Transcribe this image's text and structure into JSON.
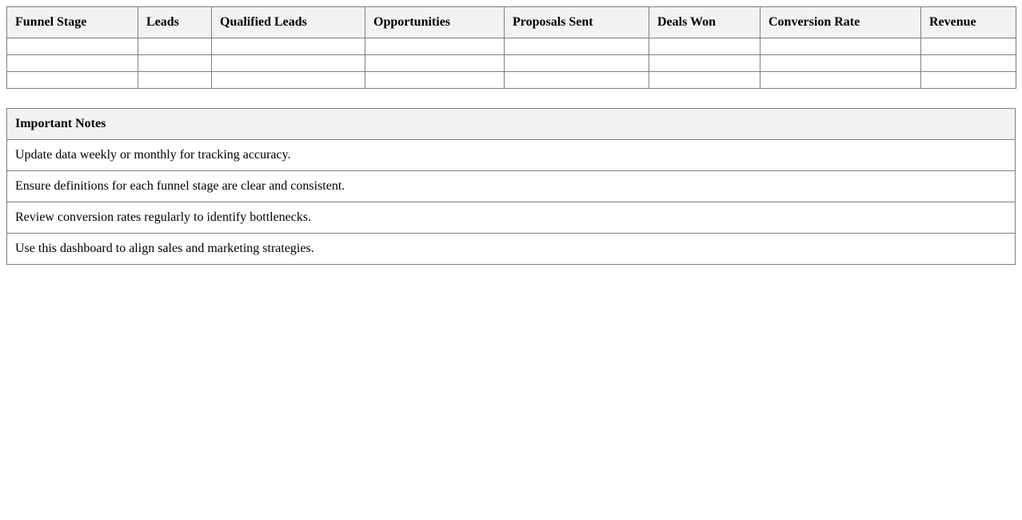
{
  "funnel_table": {
    "headers": [
      "Funnel Stage",
      "Leads",
      "Qualified Leads",
      "Opportunities",
      "Proposals Sent",
      "Deals Won",
      "Conversion Rate",
      "Revenue"
    ],
    "rows": [
      [
        "",
        "",
        "",
        "",
        "",
        "",
        "",
        ""
      ],
      [
        "",
        "",
        "",
        "",
        "",
        "",
        "",
        ""
      ],
      [
        "",
        "",
        "",
        "",
        "",
        "",
        "",
        ""
      ]
    ]
  },
  "notes": {
    "title": "Important Notes",
    "items": [
      "Update data weekly or monthly for tracking accuracy.",
      "Ensure definitions for each funnel stage are clear and consistent.",
      "Review conversion rates regularly to identify bottlenecks.",
      "Use this dashboard to align sales and marketing strategies."
    ]
  },
  "colors": {
    "border": "#808080",
    "header_bg": "#f2f2f2"
  }
}
